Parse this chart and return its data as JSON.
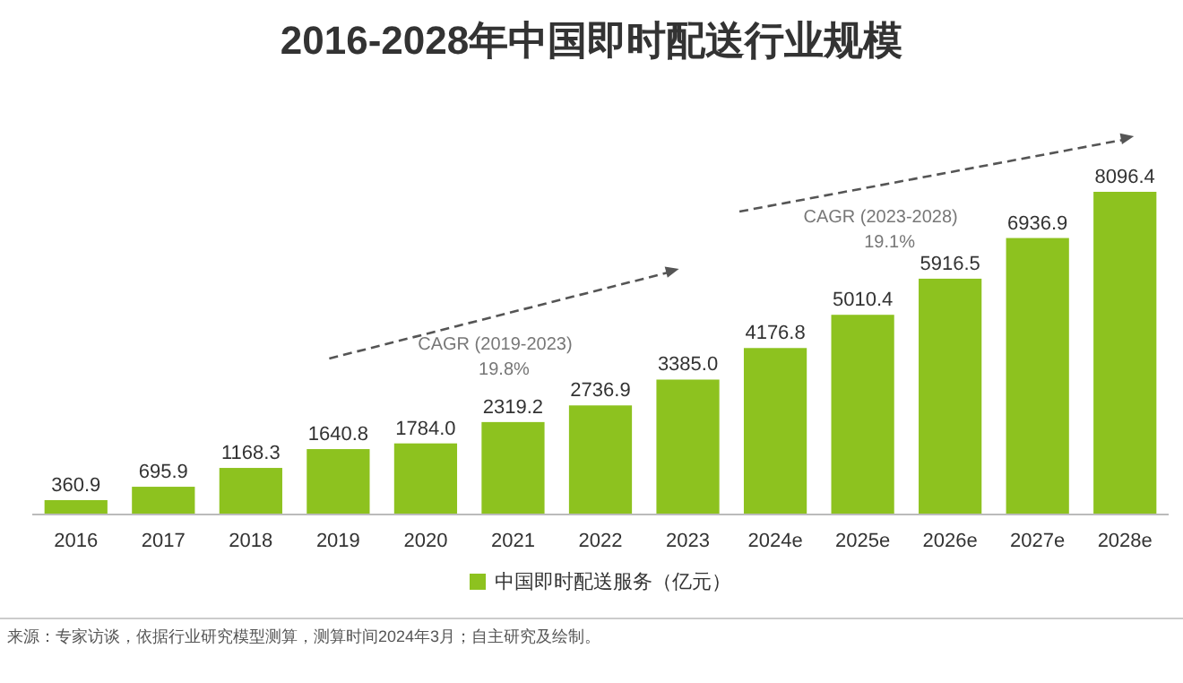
{
  "chart_data": {
    "type": "bar",
    "title": "2016-2028年中国即时配送行业规模",
    "categories": [
      "2016",
      "2017",
      "2018",
      "2019",
      "2020",
      "2021",
      "2022",
      "2023",
      "2024e",
      "2025e",
      "2026e",
      "2027e",
      "2028e"
    ],
    "series": [
      {
        "name": "中国即时配送服务（亿元）",
        "color": "#8dc21f",
        "values": [
          360.9,
          695.9,
          1168.3,
          1640.8,
          1784.0,
          2319.2,
          2736.9,
          3385.0,
          4176.8,
          5010.4,
          5916.5,
          6936.9,
          8096.4
        ],
        "value_labels": [
          "360.9",
          "695.9",
          "1168.3",
          "1640.8",
          "1784.0",
          "2319.2",
          "2736.9",
          "3385.0",
          "4176.8",
          "5010.4",
          "5916.5",
          "6936.9",
          "8096.4"
        ]
      }
    ],
    "legend": "bottom",
    "annotations": [
      "CAGR (2019-2023)",
      "19.8%",
      "CAGR (2023-2028)",
      "19.1%",
      "来源：专家访谈，依据行业研究模型测算，测算时间2024年3月；自主研究及绘制。"
    ]
  }
}
